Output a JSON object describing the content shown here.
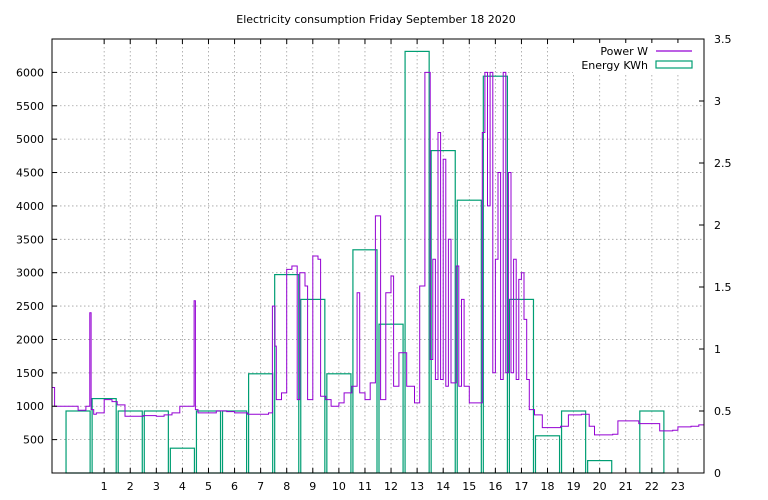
{
  "chart_data": {
    "type": "bar+line",
    "title": "Electricity consumption Friday September 18 2020",
    "x_ticks": [
      "1",
      "2",
      "3",
      "4",
      "5",
      "6",
      "7",
      "8",
      "9",
      "10",
      "11",
      "12",
      "13",
      "14",
      "15",
      "16",
      "17",
      "18",
      "19",
      "20",
      "21",
      "22",
      "23"
    ],
    "x_range": [
      -1,
      24.0
    ],
    "y_left_ticks": [
      "500",
      "1000",
      "1500",
      "2000",
      "2500",
      "3000",
      "3500",
      "4000",
      "4500",
      "5000",
      "5500",
      "6000"
    ],
    "y_left_range": [
      0,
      6500
    ],
    "y_right_ticks": [
      "0",
      "0.5",
      "1",
      "1.5",
      "2",
      "2.5",
      "3",
      "3.5"
    ],
    "y_right_range": [
      0,
      3.5
    ],
    "grid": true,
    "legend_position": "top-right",
    "legend": [
      "Power W",
      "Energy KWh"
    ],
    "colors": {
      "power": "#9400d3",
      "energy": "#009e73"
    },
    "series": [
      {
        "name": "Energy KWh",
        "axis": "right",
        "hours": [
          0,
          1,
          2,
          3,
          4,
          5,
          6,
          7,
          8,
          9,
          10,
          11,
          12,
          13,
          14,
          15,
          16,
          17,
          18,
          19,
          20,
          21,
          22,
          23
        ],
        "values": [
          0.5,
          0.6,
          0.5,
          0.5,
          0.2,
          0.5,
          0.5,
          0.8,
          1.6,
          1.4,
          0.8,
          1.8,
          1.2,
          3.4,
          2.6,
          2.2,
          3.2,
          1.4,
          0.3,
          0.5,
          0.1,
          0.0,
          0.5,
          0.0
        ]
      },
      {
        "name": "Power W",
        "axis": "left",
        "points": [
          [
            -1.0,
            1280
          ],
          [
            -0.9,
            1000
          ],
          [
            -0.5,
            1000
          ],
          [
            0.0,
            940
          ],
          [
            0.2,
            940
          ],
          [
            0.3,
            1000
          ],
          [
            0.45,
            2400
          ],
          [
            0.5,
            950
          ],
          [
            0.6,
            880
          ],
          [
            0.7,
            900
          ],
          [
            1.0,
            1100
          ],
          [
            1.3,
            1070
          ],
          [
            1.5,
            1020
          ],
          [
            1.8,
            850
          ],
          [
            2.0,
            850
          ],
          [
            2.5,
            860
          ],
          [
            3.0,
            850
          ],
          [
            3.3,
            870
          ],
          [
            3.6,
            900
          ],
          [
            3.9,
            1000
          ],
          [
            4.2,
            1000
          ],
          [
            4.45,
            2580
          ],
          [
            4.5,
            950
          ],
          [
            4.6,
            900
          ],
          [
            5.0,
            900
          ],
          [
            5.3,
            930
          ],
          [
            5.7,
            920
          ],
          [
            6.0,
            900
          ],
          [
            6.5,
            880
          ],
          [
            7.0,
            880
          ],
          [
            7.3,
            900
          ],
          [
            7.45,
            2500
          ],
          [
            7.55,
            1900
          ],
          [
            7.6,
            1100
          ],
          [
            7.8,
            1200
          ],
          [
            8.0,
            3050
          ],
          [
            8.2,
            3100
          ],
          [
            8.4,
            1100
          ],
          [
            8.5,
            3000
          ],
          [
            8.7,
            2800
          ],
          [
            8.8,
            1100
          ],
          [
            9.0,
            3250
          ],
          [
            9.2,
            3200
          ],
          [
            9.3,
            1150
          ],
          [
            9.5,
            1100
          ],
          [
            9.7,
            1000
          ],
          [
            10.0,
            1050
          ],
          [
            10.2,
            1200
          ],
          [
            10.5,
            1300
          ],
          [
            10.7,
            2700
          ],
          [
            10.8,
            1200
          ],
          [
            11.0,
            1100
          ],
          [
            11.2,
            1350
          ],
          [
            11.4,
            3850
          ],
          [
            11.6,
            1100
          ],
          [
            11.8,
            2700
          ],
          [
            12.0,
            2950
          ],
          [
            12.1,
            1300
          ],
          [
            12.3,
            1800
          ],
          [
            12.6,
            1300
          ],
          [
            12.9,
            1050
          ],
          [
            13.1,
            2800
          ],
          [
            13.3,
            6000
          ],
          [
            13.5,
            1700
          ],
          [
            13.6,
            3200
          ],
          [
            13.7,
            1400
          ],
          [
            13.8,
            5100
          ],
          [
            13.9,
            1400
          ],
          [
            14.0,
            4700
          ],
          [
            14.1,
            1300
          ],
          [
            14.2,
            3500
          ],
          [
            14.3,
            1350
          ],
          [
            14.5,
            3100
          ],
          [
            14.6,
            1300
          ],
          [
            14.7,
            2600
          ],
          [
            14.8,
            1300
          ],
          [
            15.0,
            1050
          ],
          [
            15.3,
            1050
          ],
          [
            15.5,
            5100
          ],
          [
            15.6,
            6000
          ],
          [
            15.7,
            4000
          ],
          [
            15.8,
            6000
          ],
          [
            15.9,
            1500
          ],
          [
            16.0,
            3200
          ],
          [
            16.1,
            4500
          ],
          [
            16.2,
            1400
          ],
          [
            16.3,
            6000
          ],
          [
            16.4,
            1500
          ],
          [
            16.5,
            4500
          ],
          [
            16.6,
            1500
          ],
          [
            16.7,
            3200
          ],
          [
            16.8,
            1400
          ],
          [
            16.9,
            2900
          ],
          [
            17.0,
            3000
          ],
          [
            17.1,
            2300
          ],
          [
            17.2,
            1400
          ],
          [
            17.3,
            950
          ],
          [
            17.5,
            870
          ],
          [
            17.8,
            680
          ],
          [
            18.0,
            680
          ],
          [
            18.5,
            700
          ],
          [
            18.8,
            870
          ],
          [
            19.0,
            870
          ],
          [
            19.3,
            880
          ],
          [
            19.6,
            700
          ],
          [
            19.8,
            570
          ],
          [
            20.2,
            570
          ],
          [
            20.5,
            580
          ],
          [
            20.7,
            780
          ],
          [
            21.0,
            780
          ],
          [
            21.5,
            740
          ],
          [
            22.0,
            740
          ],
          [
            22.3,
            630
          ],
          [
            22.8,
            640
          ],
          [
            23.0,
            690
          ],
          [
            23.5,
            700
          ],
          [
            23.8,
            720
          ],
          [
            24.0,
            720
          ]
        ]
      }
    ]
  }
}
